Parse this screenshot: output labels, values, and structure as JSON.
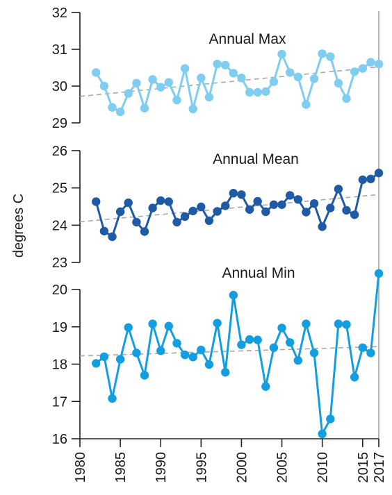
{
  "chart_data": {
    "type": "line",
    "ylabel": "degrees C",
    "xlim": [
      1980,
      2017
    ],
    "x_ticks": [
      1980,
      1985,
      1990,
      1995,
      2000,
      2005,
      2010,
      2015,
      2017
    ],
    "reference_line_year": 2017,
    "x": [
      1982,
      1983,
      1984,
      1985,
      1986,
      1987,
      1988,
      1989,
      1990,
      1991,
      1992,
      1993,
      1994,
      1995,
      1996,
      1997,
      1998,
      1999,
      2000,
      2001,
      2002,
      2003,
      2004,
      2005,
      2006,
      2007,
      2008,
      2009,
      2010,
      2011,
      2012,
      2013,
      2014,
      2015,
      2016,
      2017
    ],
    "panels": [
      {
        "title": "Annual Max",
        "color": "#7fcdf1",
        "ylim": [
          29,
          32
        ],
        "y_ticks": [
          29,
          30,
          31,
          32
        ],
        "values": [
          30.37,
          30.0,
          29.42,
          29.3,
          29.8,
          30.08,
          29.4,
          30.18,
          29.97,
          30.1,
          29.62,
          30.48,
          29.38,
          30.22,
          29.7,
          30.6,
          30.57,
          30.35,
          30.22,
          29.83,
          29.83,
          29.85,
          30.12,
          30.87,
          30.37,
          30.25,
          29.5,
          30.2,
          30.88,
          30.8,
          30.08,
          29.66,
          30.39,
          30.48,
          30.65,
          30.6
        ],
        "trend": [
          29.72,
          30.52
        ]
      },
      {
        "title": "Annual Mean",
        "color": "#1f5aa6",
        "ylim": [
          23,
          26
        ],
        "y_ticks": [
          23,
          24,
          25,
          26
        ],
        "values": [
          24.63,
          23.84,
          23.69,
          24.36,
          24.6,
          24.08,
          23.83,
          24.46,
          24.66,
          24.63,
          24.08,
          24.23,
          24.38,
          24.49,
          24.12,
          24.37,
          24.52,
          24.86,
          24.82,
          24.42,
          24.64,
          24.36,
          24.55,
          24.55,
          24.8,
          24.69,
          24.35,
          24.58,
          23.96,
          24.46,
          24.97,
          24.4,
          24.28,
          25.22,
          25.24,
          25.4
        ],
        "trend": [
          24.09,
          24.82
        ]
      },
      {
        "title": "Annual Min",
        "color": "#129ee0",
        "ylim": [
          16,
          20.5
        ],
        "y_ticks": [
          16,
          17,
          18,
          19,
          20
        ],
        "values": [
          18.02,
          18.2,
          17.08,
          18.13,
          18.98,
          18.3,
          17.7,
          19.08,
          18.36,
          19.02,
          18.56,
          18.25,
          18.19,
          18.38,
          17.99,
          19.1,
          17.78,
          19.85,
          18.52,
          18.66,
          18.65,
          17.4,
          18.44,
          18.97,
          18.58,
          18.1,
          19.08,
          18.3,
          16.13,
          16.53,
          19.08,
          19.06,
          17.65,
          18.44,
          18.3,
          20.43
        ],
        "trend": [
          18.22,
          18.47
        ]
      }
    ]
  }
}
